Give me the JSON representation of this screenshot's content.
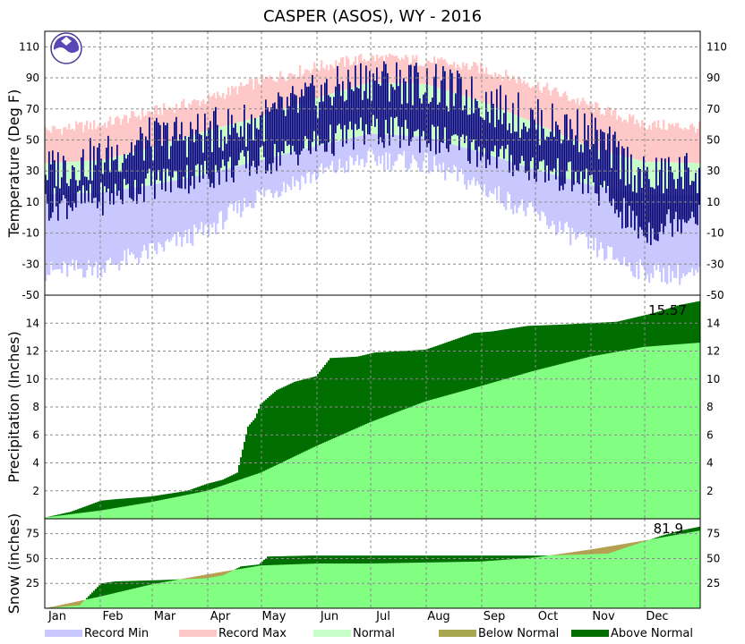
{
  "chart_data": [
    {
      "panel": "temperature",
      "type": "bar",
      "title": "CASPER (ASOS), WY - 2016",
      "ylabel": "Temperature (Deg F)",
      "ylim": [
        -50,
        120
      ],
      "yticks": [
        -30,
        -10,
        10,
        30,
        50,
        70,
        90,
        110
      ],
      "grid": true,
      "logo": "NOAA",
      "months": [
        "Jan",
        "Feb",
        "Mar",
        "Apr",
        "May",
        "Jun",
        "Jul",
        "Aug",
        "Sep",
        "Oct",
        "Nov",
        "Dec"
      ],
      "series_colors": {
        "record_min": "#c8c8ff",
        "record_max": "#ffc8c8",
        "normal": "#c8ffc8",
        "observed": "#0a0a6e"
      },
      "series": [
        {
          "name": "Record Max",
          "x": [
            1,
            32,
            60,
            91,
            121,
            152,
            182,
            213,
            244,
            274,
            305,
            335,
            366
          ],
          "values": [
            56,
            60,
            68,
            76,
            88,
            97,
            103,
            101,
            96,
            86,
            72,
            60,
            58
          ]
        },
        {
          "name": "Normal High",
          "x": [
            1,
            32,
            60,
            91,
            121,
            152,
            182,
            213,
            244,
            274,
            305,
            335,
            366
          ],
          "values": [
            35,
            37,
            45,
            56,
            65,
            77,
            87,
            86,
            75,
            61,
            45,
            36,
            35
          ]
        },
        {
          "name": "Normal Low",
          "x": [
            1,
            32,
            60,
            91,
            121,
            152,
            182,
            213,
            244,
            274,
            305,
            335,
            366
          ],
          "values": [
            15,
            16,
            21,
            28,
            37,
            46,
            54,
            52,
            42,
            31,
            21,
            15,
            15
          ]
        },
        {
          "name": "Record Min",
          "x": [
            1,
            32,
            60,
            91,
            121,
            152,
            182,
            213,
            244,
            274,
            305,
            335,
            366
          ],
          "values": [
            -35,
            -32,
            -22,
            -8,
            15,
            28,
            38,
            35,
            20,
            2,
            -18,
            -35,
            -38
          ]
        },
        {
          "name": "Observed High",
          "x": [
            1,
            32,
            60,
            91,
            121,
            152,
            182,
            213,
            244,
            274,
            305,
            335,
            366
          ],
          "values": [
            30,
            38,
            50,
            55,
            62,
            78,
            90,
            86,
            76,
            62,
            55,
            25,
            30
          ]
        },
        {
          "name": "Observed Low",
          "x": [
            1,
            32,
            60,
            91,
            121,
            152,
            182,
            213,
            244,
            274,
            305,
            335,
            366
          ],
          "values": [
            8,
            12,
            22,
            28,
            36,
            47,
            56,
            52,
            42,
            32,
            22,
            -10,
            5
          ]
        }
      ]
    },
    {
      "panel": "precipitation",
      "type": "area",
      "ylabel": "Precipitation (Inches)",
      "ylim": [
        0,
        16
      ],
      "yticks": [
        2,
        4,
        6,
        8,
        10,
        12,
        14
      ],
      "grid": true,
      "annotation": "15.57",
      "series_colors": {
        "observed": "#006e00",
        "normal": "#82ff82"
      },
      "series": [
        {
          "name": "Observed",
          "x": [
            1,
            15,
            32,
            40,
            60,
            80,
            91,
            100,
            108,
            114,
            118,
            121,
            130,
            140,
            152,
            160,
            175,
            185,
            200,
            213,
            220,
            240,
            250,
            270,
            290,
            305,
            320,
            340,
            355,
            366
          ],
          "values": [
            0.1,
            0.5,
            1.3,
            1.4,
            1.6,
            2.0,
            2.5,
            2.8,
            3.3,
            6.6,
            7.2,
            8.2,
            9.2,
            9.8,
            10.2,
            11.5,
            11.6,
            11.9,
            12.0,
            12.1,
            12.4,
            13.3,
            13.4,
            13.8,
            13.9,
            14.0,
            14.1,
            14.7,
            15.3,
            15.57
          ]
        },
        {
          "name": "Normal",
          "x": [
            1,
            32,
            60,
            91,
            121,
            152,
            182,
            213,
            244,
            274,
            305,
            335,
            366
          ],
          "values": [
            0.1,
            0.6,
            1.2,
            2.0,
            3.3,
            5.2,
            6.9,
            8.4,
            9.5,
            10.6,
            11.6,
            12.3,
            12.6
          ]
        }
      ]
    },
    {
      "panel": "snow",
      "type": "area",
      "ylabel": "Snow (inches)",
      "ylim": [
        0,
        90
      ],
      "yticks": [
        25,
        50,
        75
      ],
      "grid": true,
      "annotation": "81.9",
      "series_colors": {
        "above": "#006e00",
        "below": "#b4a050",
        "normal": "#82ff82"
      },
      "series": [
        {
          "name": "Observed",
          "x": [
            1,
            20,
            32,
            40,
            60,
            75,
            90,
            100,
            110,
            120,
            125,
            150,
            180,
            210,
            250,
            280,
            300,
            315,
            330,
            345,
            355,
            366
          ],
          "values": [
            0,
            3,
            25,
            27,
            28,
            29,
            30,
            33,
            42,
            44,
            52,
            53,
            53,
            53,
            53,
            53,
            54,
            55,
            64,
            73,
            78,
            82
          ]
        },
        {
          "name": "Normal",
          "x": [
            1,
            32,
            60,
            91,
            121,
            152,
            182,
            213,
            244,
            274,
            305,
            335,
            366
          ],
          "values": [
            0,
            12,
            24,
            34,
            43,
            45,
            45,
            46,
            47,
            51,
            59,
            68,
            78
          ]
        }
      ]
    }
  ],
  "legend": [
    {
      "label": "Record Min",
      "color": "#c8c8ff"
    },
    {
      "label": "Record Max",
      "color": "#ffc8c8"
    },
    {
      "label": "Normal",
      "color": "#c8ffc8"
    },
    {
      "label": "Below Normal",
      "color": "#a8a850"
    },
    {
      "label": "Above Normal",
      "color": "#006e00"
    }
  ]
}
